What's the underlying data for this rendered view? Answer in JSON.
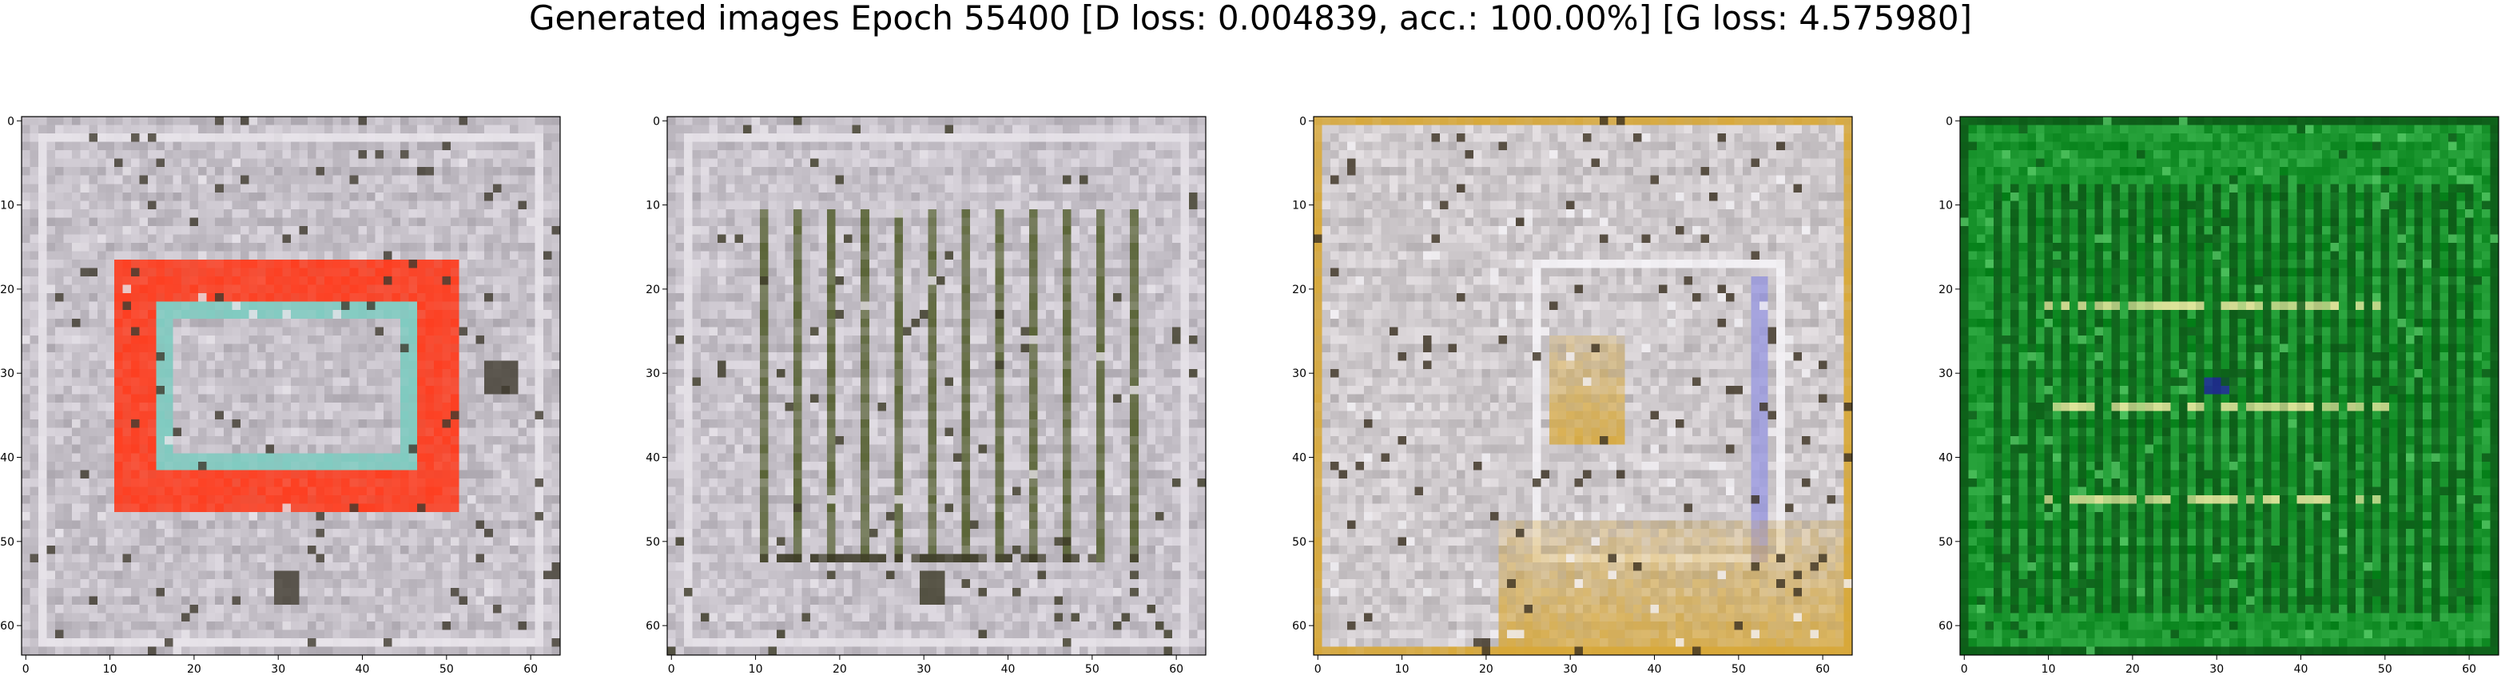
{
  "title": "Generated images Epoch 55400 [D loss: 0.004839, acc.: 100.00%] [G loss: 4.575980]",
  "chart_data": [
    {
      "type": "heatmap",
      "xlim": [
        0,
        63
      ],
      "ylim": [
        63,
        0
      ],
      "xticks": [
        "0",
        "10",
        "20",
        "30",
        "40",
        "50",
        "60"
      ],
      "yticks": [
        "0",
        "10",
        "20",
        "30",
        "40",
        "50",
        "60"
      ],
      "grid": false,
      "palette": {
        "base": "#c9c4cc",
        "light": "#e8e4ea",
        "dark": "#3f3a2e",
        "accent": "#ff3b1c",
        "accent2": "#7ecbc0"
      },
      "regions": [
        {
          "shape": "frame",
          "x": [
            11,
            51
          ],
          "y": [
            17,
            46
          ],
          "thickness": 5,
          "color": "accent"
        },
        {
          "shape": "frame",
          "x": [
            16,
            46
          ],
          "y": [
            22,
            41
          ],
          "thickness": 2,
          "color": "accent2"
        },
        {
          "shape": "spot",
          "x": [
            30,
            32
          ],
          "y": [
            54,
            57
          ],
          "color": "dark"
        },
        {
          "shape": "spot",
          "x": [
            55,
            58
          ],
          "y": [
            29,
            32
          ],
          "color": "dark"
        },
        {
          "shape": "frame",
          "x": [
            2,
            61
          ],
          "y": [
            2,
            62
          ],
          "thickness": 1,
          "color": "light"
        }
      ]
    },
    {
      "type": "heatmap",
      "xlim": [
        0,
        63
      ],
      "ylim": [
        63,
        0
      ],
      "xticks": [
        "0",
        "10",
        "20",
        "30",
        "40",
        "50",
        "60"
      ],
      "yticks": [
        "0",
        "10",
        "20",
        "30",
        "40",
        "50",
        "60"
      ],
      "grid": false,
      "palette": {
        "base": "#cbc6ce",
        "light": "#e6e2e8",
        "dark": "#3a3824",
        "accent": "#556030",
        "accent2": "#9a9a80"
      },
      "regions": [
        {
          "shape": "vlines",
          "x": [
            11,
            55
          ],
          "y": [
            11,
            52
          ],
          "step": 4,
          "color": "accent"
        },
        {
          "shape": "hline",
          "x": [
            11,
            55
          ],
          "y": [
            52,
            52
          ],
          "color": "dark"
        },
        {
          "shape": "spot",
          "x": [
            30,
            32
          ],
          "y": [
            54,
            57
          ],
          "color": "dark"
        },
        {
          "shape": "frame",
          "x": [
            2,
            61
          ],
          "y": [
            2,
            62
          ],
          "thickness": 1,
          "color": "light"
        }
      ]
    },
    {
      "type": "heatmap",
      "xlim": [
        0,
        63
      ],
      "ylim": [
        63,
        0
      ],
      "xticks": [
        "0",
        "10",
        "20",
        "30",
        "40",
        "50",
        "60"
      ],
      "yticks": [
        "0",
        "10",
        "20",
        "30",
        "40",
        "50",
        "60"
      ],
      "grid": false,
      "palette": {
        "base": "#d2cdd0",
        "light": "#f4f2f6",
        "dark": "#3a3020",
        "accent": "#d8a838",
        "accent2": "#8f8fe0"
      },
      "regions": [
        {
          "shape": "frame",
          "x": [
            26,
            55
          ],
          "y": [
            17,
            52
          ],
          "thickness": 1,
          "color": "light"
        },
        {
          "shape": "vband",
          "x": [
            52,
            53
          ],
          "y": [
            19,
            52
          ],
          "color": "accent2"
        },
        {
          "shape": "gradient",
          "x": [
            22,
            63
          ],
          "y": [
            48,
            63
          ],
          "color": "accent"
        },
        {
          "shape": "gradient",
          "x": [
            28,
            36
          ],
          "y": [
            26,
            38
          ],
          "color": "accent"
        },
        {
          "shape": "frame",
          "x": [
            0,
            63
          ],
          "y": [
            0,
            63
          ],
          "thickness": 1,
          "color": "accent"
        }
      ]
    },
    {
      "type": "heatmap",
      "xlim": [
        0,
        63
      ],
      "ylim": [
        63,
        0
      ],
      "xticks": [
        "0",
        "10",
        "20",
        "30",
        "40",
        "50",
        "60"
      ],
      "yticks": [
        "0",
        "10",
        "20",
        "30",
        "40",
        "50",
        "60"
      ],
      "grid": false,
      "palette": {
        "base": "#1f9a33",
        "light": "#54c864",
        "dark": "#0d5a18",
        "accent": "#e8e8a0",
        "accent2": "#2020a0"
      },
      "regions": [
        {
          "shape": "vlines",
          "x": [
            4,
            60
          ],
          "y": [
            8,
            58
          ],
          "step": 2,
          "color": "dark"
        },
        {
          "shape": "hline",
          "x": [
            10,
            50
          ],
          "y": [
            22,
            22
          ],
          "color": "accent"
        },
        {
          "shape": "hline",
          "x": [
            8,
            50
          ],
          "y": [
            34,
            34
          ],
          "color": "accent"
        },
        {
          "shape": "hline",
          "x": [
            10,
            50
          ],
          "y": [
            45,
            45
          ],
          "color": "accent"
        },
        {
          "shape": "spot",
          "x": [
            29,
            31
          ],
          "y": [
            31,
            32
          ],
          "color": "accent2"
        },
        {
          "shape": "frame",
          "x": [
            0,
            63
          ],
          "y": [
            0,
            63
          ],
          "thickness": 1,
          "color": "dark"
        }
      ]
    }
  ]
}
